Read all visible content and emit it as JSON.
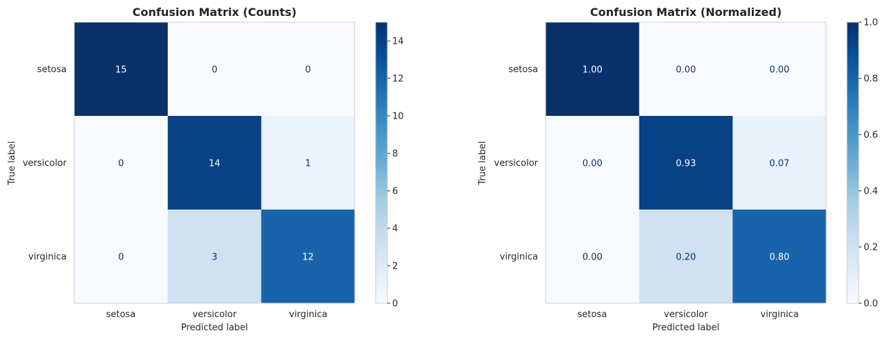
{
  "chart_data": [
    {
      "type": "heatmap",
      "title": "Confusion Matrix (Counts)",
      "xlabel": "Predicted label",
      "ylabel": "True label",
      "x_categories": [
        "setosa",
        "versicolor",
        "virginica"
      ],
      "y_categories": [
        "setosa",
        "versicolor",
        "virginica"
      ],
      "values": [
        [
          15,
          0,
          0
        ],
        [
          0,
          14,
          1
        ],
        [
          0,
          3,
          12
        ]
      ],
      "cell_labels": [
        [
          "15",
          "0",
          "0"
        ],
        [
          "0",
          "14",
          "1"
        ],
        [
          "0",
          "3",
          "12"
        ]
      ],
      "colormap": "Blues",
      "color_range": [
        0,
        15
      ],
      "colorbar_ticks": [
        "0",
        "2",
        "4",
        "6",
        "8",
        "10",
        "12",
        "14"
      ],
      "colorbar_tick_values": [
        0,
        2,
        4,
        6,
        8,
        10,
        12,
        14
      ]
    },
    {
      "type": "heatmap",
      "title": "Confusion Matrix (Normalized)",
      "xlabel": "Predicted label",
      "ylabel": "True label",
      "x_categories": [
        "setosa",
        "versicolor",
        "virginica"
      ],
      "y_categories": [
        "setosa",
        "versicolor",
        "virginica"
      ],
      "values": [
        [
          1.0,
          0.0,
          0.0
        ],
        [
          0.0,
          0.93,
          0.07
        ],
        [
          0.0,
          0.2,
          0.8
        ]
      ],
      "cell_labels": [
        [
          "1.00",
          "0.00",
          "0.00"
        ],
        [
          "0.00",
          "0.93",
          "0.07"
        ],
        [
          "0.00",
          "0.20",
          "0.80"
        ]
      ],
      "colormap": "Blues",
      "color_range": [
        0,
        1
      ],
      "colorbar_ticks": [
        "0.0",
        "0.2",
        "0.4",
        "0.6",
        "0.8",
        "1.0"
      ],
      "colorbar_tick_values": [
        0,
        0.2,
        0.4,
        0.6,
        0.8,
        1.0
      ]
    }
  ]
}
